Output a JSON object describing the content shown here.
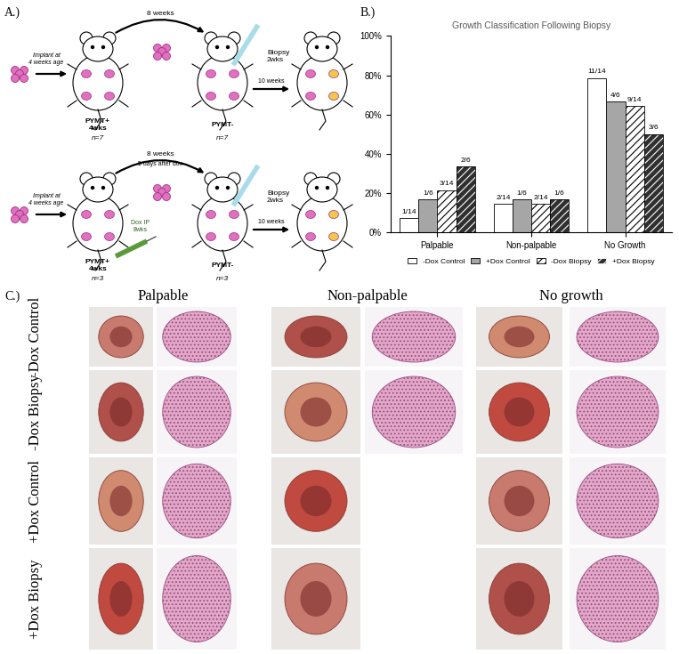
{
  "panel_a": {
    "label": "A.)",
    "rows": [
      {
        "implant": "Implant at\n4 weeks age",
        "interval": "8 weeks",
        "biopsy": "Biopsy\n2wks",
        "follow_up": "10 weeks",
        "host_before": "PYMT+\n4wks",
        "n_before": "n=7",
        "host_after": "PYMT-",
        "n_after": "n=7"
      },
      {
        "implant": "Implant at\n4 weeks age",
        "interval": "8 weeks",
        "interval_note": "5 days after dox",
        "dox": "Dox IP\n8wks",
        "biopsy": "Biopsy\n2wks",
        "follow_up": "10 weeks",
        "host_before": "PYMT+\n4wks",
        "n_before": "n=3",
        "host_after": "PYMT-",
        "n_after": "n=3"
      }
    ]
  },
  "chart_data": {
    "type": "bar",
    "panel_label": "B.)",
    "title": "Growth Classification Following Biopsy",
    "categories": [
      "Palpable",
      "Non-palpable",
      "No Growth"
    ],
    "series": [
      {
        "name": "-Dox Control",
        "color": "#ffffff",
        "values": [
          7.14,
          14.29,
          78.57
        ],
        "value_labels": [
          "1/14",
          "2/14",
          "11/14"
        ]
      },
      {
        "name": "+Dox Control",
        "color": "#a6a6a6",
        "values": [
          16.67,
          16.67,
          66.67
        ],
        "value_labels": [
          "1/6",
          "1/6",
          "4/6"
        ]
      },
      {
        "name": "-Dox Biopsy",
        "color": "#ffffff",
        "values": [
          21.43,
          14.29,
          64.29
        ],
        "value_labels": [
          "3/14",
          "2/14",
          "9/14"
        ]
      },
      {
        "name": "+Dox Biopsy",
        "color": "#303030",
        "values": [
          33.33,
          16.67,
          50.0
        ],
        "value_labels": [
          "2/6",
          "1/6",
          "3/6"
        ]
      }
    ],
    "ylim": [
      0,
      100
    ],
    "yticks": [
      {
        "value": 0,
        "label": "0%"
      },
      {
        "value": 20,
        "label": "20%"
      },
      {
        "value": 40,
        "label": "40%"
      },
      {
        "value": 60,
        "label": "60%"
      },
      {
        "value": 80,
        "label": "80%"
      },
      {
        "value": 100,
        "label": "100%"
      }
    ],
    "grid": false,
    "legend": "bottom",
    "data_labels": true
  },
  "panel_c": {
    "label": "C.)",
    "columns": [
      "Palpable",
      "Non-palpable",
      "No growth"
    ],
    "rows": [
      "-Dox Control",
      "-Dox Biopsy",
      "+Dox Control",
      "+Dox Biopsy"
    ]
  }
}
